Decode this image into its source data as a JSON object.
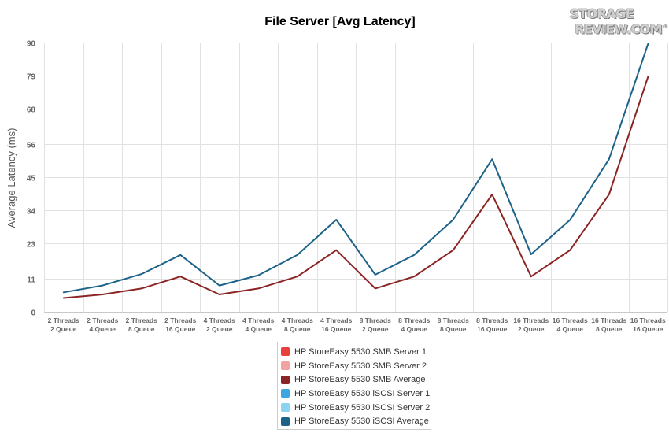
{
  "chart_data": {
    "type": "line",
    "title": "File Server [Avg Latency]",
    "xlabel": "",
    "ylabel": "Average Latency (ms)",
    "ylim": [
      0,
      90
    ],
    "yticks": [
      0,
      11,
      23,
      34,
      45,
      56,
      68,
      79,
      90
    ],
    "grid": true,
    "legend_position": "bottom",
    "categories": [
      [
        "2 Threads",
        "2 Queue"
      ],
      [
        "2 Threads",
        "4 Queue"
      ],
      [
        "2 Threads",
        "8 Queue"
      ],
      [
        "2 Threads",
        "16 Queue"
      ],
      [
        "4 Threads",
        "2 Queue"
      ],
      [
        "4 Threads",
        "4 Queue"
      ],
      [
        "4 Threads",
        "8 Queue"
      ],
      [
        "4 Threads",
        "16 Queue"
      ],
      [
        "8 Threads",
        "2 Queue"
      ],
      [
        "8 Threads",
        "4 Queue"
      ],
      [
        "8 Threads",
        "8 Queue"
      ],
      [
        "8 Threads",
        "16 Queue"
      ],
      [
        "16 Threads",
        "2 Queue"
      ],
      [
        "16 Threads",
        "4 Queue"
      ],
      [
        "16 Threads",
        "8 Queue"
      ],
      [
        "16 Threads",
        "16 Queue"
      ]
    ],
    "series": [
      {
        "name": "HP StoreEasy 5530 SMB Server 1",
        "color": "#e8413c",
        "values": null
      },
      {
        "name": "HP StoreEasy 5530 SMB Server 2",
        "color": "#f0a3a0",
        "values": null
      },
      {
        "name": "HP StoreEasy 5530 SMB Average",
        "color": "#8b2525",
        "values": [
          4.6,
          5.8,
          7.8,
          11.8,
          5.8,
          7.8,
          11.8,
          20.6,
          7.8,
          11.8,
          20.6,
          39.2,
          11.8,
          20.6,
          39.2,
          78.5
        ]
      },
      {
        "name": "HP StoreEasy 5530 iSCSI Server 1",
        "color": "#3da5e0",
        "values": null
      },
      {
        "name": "HP StoreEasy 5530 iSCSI Server 2",
        "color": "#88d4f2",
        "values": null
      },
      {
        "name": "HP StoreEasy 5530 iSCSI Average",
        "color": "#1d6288",
        "values": [
          6.5,
          8.8,
          12.6,
          19.0,
          8.8,
          12.2,
          19.0,
          30.8,
          12.4,
          19.0,
          30.8,
          51.0,
          19.2,
          30.7,
          51.0,
          89.5
        ]
      }
    ]
  },
  "branding": {
    "logo_line1": "STORAGE",
    "logo_line2": "REVIEW.COM",
    "logo_reg": "®"
  }
}
